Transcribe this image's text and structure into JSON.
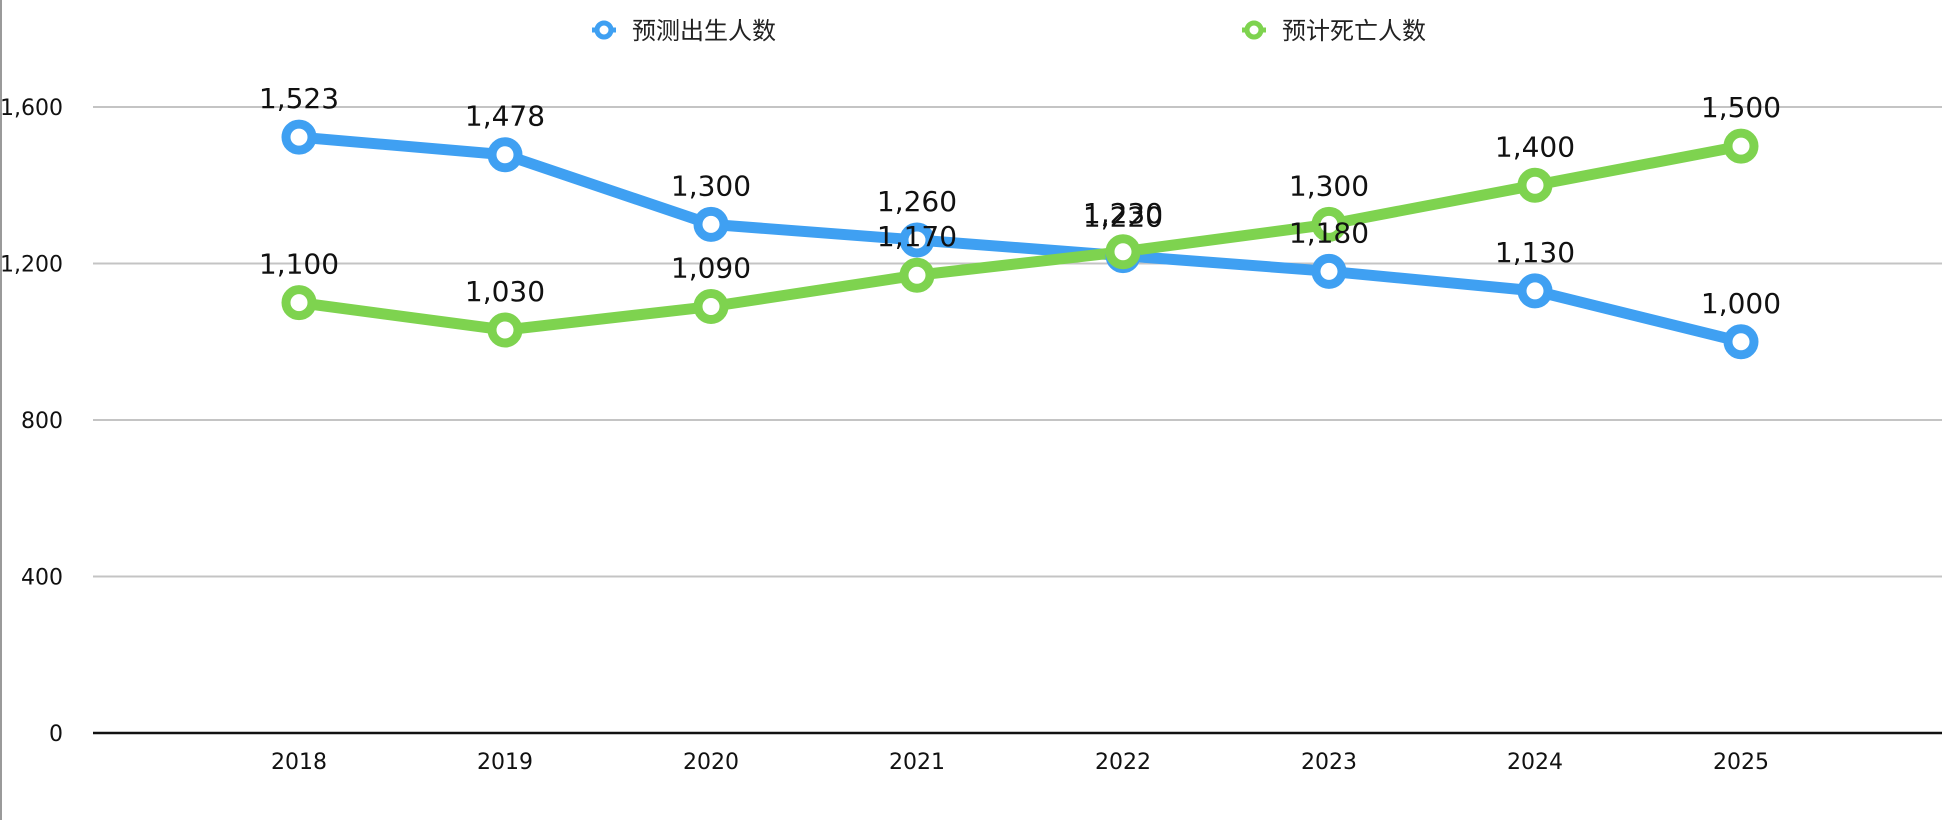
{
  "chart_data": {
    "type": "line",
    "categories": [
      "2018",
      "2019",
      "2020",
      "2021",
      "2022",
      "2023",
      "2024",
      "2025"
    ],
    "series": [
      {
        "name": "预测出生人数",
        "color": "#3fa0f2",
        "values": [
          1523,
          1478,
          1300,
          1260,
          1220,
          1180,
          1130,
          1000
        ],
        "value_labels": [
          "1,523",
          "1,478",
          "1,300",
          "1,260",
          "1,220",
          "1,180",
          "1,130",
          "1,000"
        ]
      },
      {
        "name": "预计死亡人数",
        "color": "#7ed34f",
        "values": [
          1100,
          1030,
          1090,
          1170,
          1230,
          1300,
          1400,
          1500
        ],
        "value_labels": [
          "1,100",
          "1,030",
          "1,090",
          "1,170",
          "1,230",
          "1,300",
          "1,400",
          "1,500"
        ]
      }
    ],
    "y_ticks": [
      0,
      400,
      800,
      1200,
      1600
    ],
    "y_tick_labels": [
      "0",
      "400",
      "800",
      "1,200",
      "1,600"
    ],
    "ylim": [
      0,
      1600
    ],
    "grid": true,
    "legend_position": "top",
    "title": "",
    "xlabel": "",
    "ylabel": ""
  }
}
